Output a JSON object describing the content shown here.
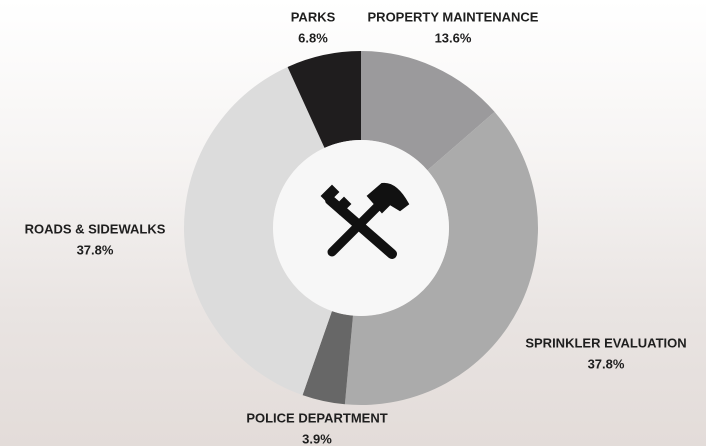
{
  "chart_data": {
    "type": "donut",
    "categories": [
      "PROPERTY MAINTENANCE",
      "SPRINKLER EVALUATION",
      "POLICE DEPARTMENT",
      "ROADS & SIDEWALKS",
      "PARKS"
    ],
    "values": [
      13.6,
      37.8,
      3.9,
      37.8,
      6.8
    ],
    "value_labels": [
      "13.6%",
      "37.8%",
      "3.9%",
      "37.8%",
      "6.8%"
    ],
    "colors": [
      "#9b9a9c",
      "#ababab",
      "#676767",
      "#dcdcdc",
      "#1f1d1e"
    ]
  }
}
